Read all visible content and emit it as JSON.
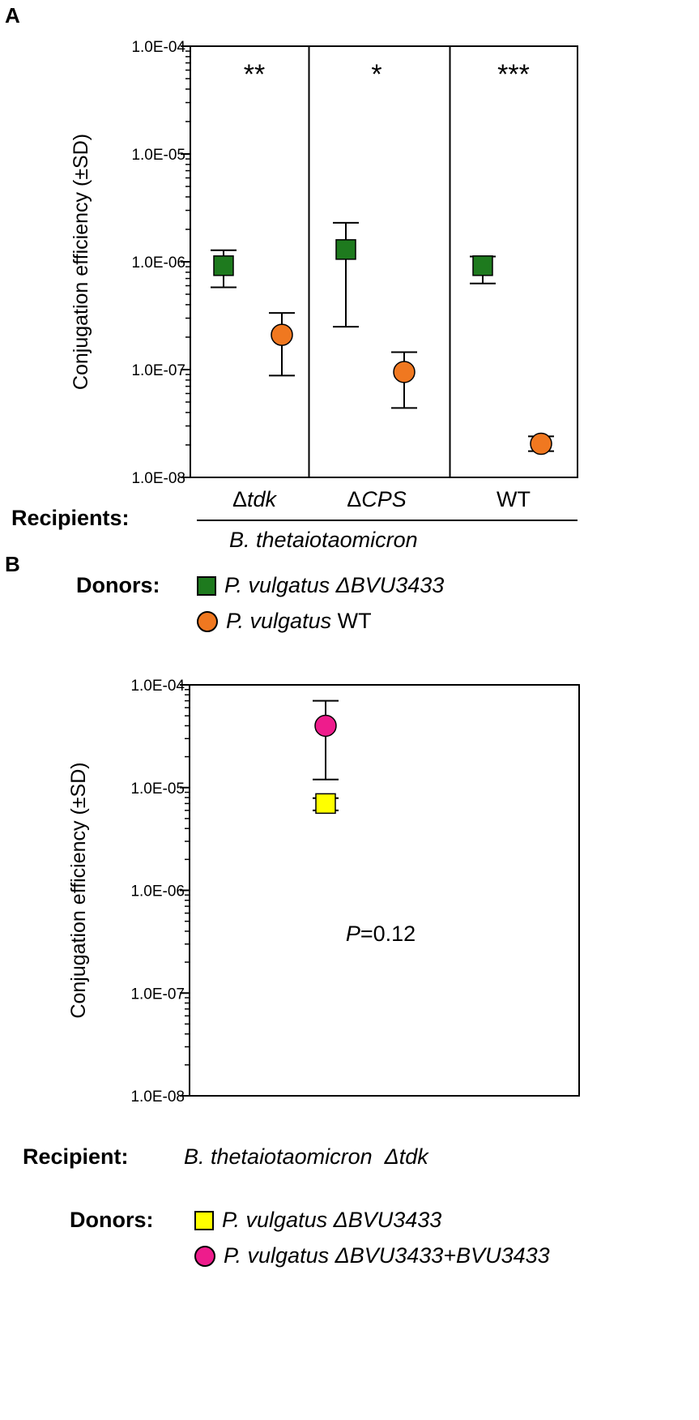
{
  "panel_a": {
    "letter": "A",
    "recipients_label": "Recipients:",
    "recipients_species": "B. thetaiotaomicron",
    "donors_label": "Donors:",
    "legend": [
      {
        "marker": "square",
        "color": "#1e7a1e",
        "prefix": "P. vulgatus ΔBVU3433",
        "suffix": ""
      },
      {
        "marker": "circle",
        "color": "#f07820",
        "prefix": "P. vulgatus",
        "suffix": " WT"
      }
    ]
  },
  "panel_b": {
    "letter": "B",
    "recipient_label": "Recipient:",
    "recipient_species": "B. thetaiotaomicron  Δtdk",
    "donors_label": "Donors:",
    "legend": [
      {
        "marker": "square",
        "color": "#ffff00",
        "prefix": "P. vulgatus ΔBVU3433",
        "suffix": ""
      },
      {
        "marker": "circle",
        "color": "#ee1c8c",
        "prefix": "P. vulgatus ΔBVU3433+BVU3433",
        "suffix": ""
      }
    ]
  },
  "chart_data": [
    {
      "type": "scatter",
      "ylabel": "Conjugation efficiency (±SD)",
      "yscale": "log",
      "ylim": [
        1e-08,
        0.0001
      ],
      "ytick_labels": [
        "1.0E-08",
        "1.0E-07",
        "1.0E-06",
        "1.0E-05",
        "1.0E-04"
      ],
      "categories": [
        "Δtdk",
        "ΔCPS",
        "WT"
      ],
      "significance": [
        "**",
        "*",
        "***"
      ],
      "series": [
        {
          "color": "#1e7a1e",
          "marker": "square",
          "values": [
            9.2e-07,
            1.3e-06,
            9.2e-07
          ],
          "err_low": [
            5.8e-07,
            2.5e-07,
            6.3e-07
          ],
          "err_high": [
            1.28e-06,
            2.3e-06,
            1.12e-06
          ]
        },
        {
          "color": "#f07820",
          "marker": "circle",
          "values": [
            2.1e-07,
            9.5e-08,
            2.05e-08
          ],
          "err_low": [
            8.8e-08,
            4.4e-08,
            1.75e-08
          ],
          "err_high": [
            3.35e-07,
            1.45e-07,
            2.4e-08
          ]
        }
      ]
    },
    {
      "type": "scatter",
      "ylabel": "Conjugation efficiency (±SD)",
      "yscale": "log",
      "ylim": [
        1e-08,
        0.0001
      ],
      "ytick_labels": [
        "1.0E-08",
        "1.0E-07",
        "1.0E-06",
        "1.0E-05",
        "1.0E-04"
      ],
      "annotation": {
        "italic": "P",
        "rest": "=0.12"
      },
      "series": [
        {
          "color": "#ffff00",
          "marker": "square",
          "values": [
            7e-06
          ],
          "err_low": [
            6e-06
          ],
          "err_high": [
            7.9e-06
          ]
        },
        {
          "color": "#ee1c8c",
          "marker": "circle",
          "values": [
            4e-05
          ],
          "err_low": [
            1.2e-05
          ],
          "err_high": [
            7e-05
          ]
        }
      ]
    }
  ]
}
